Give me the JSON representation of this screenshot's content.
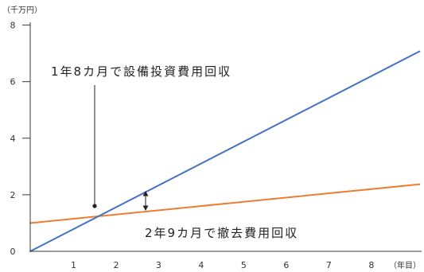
{
  "chart_data": {
    "type": "line",
    "ylabel": "（千万円）",
    "xlabel": "（年目）",
    "x_ticks": [
      "1",
      "2",
      "3",
      "4",
      "5",
      "6",
      "7",
      "8"
    ],
    "y_ticks": [
      "0",
      "2",
      "4",
      "6",
      "8"
    ],
    "xlim": [
      0,
      9.2
    ],
    "ylim": [
      0,
      8.1
    ],
    "grid": false,
    "series": [
      {
        "color": "#4472C4",
        "x": [
          0,
          9.15
        ],
        "y": [
          0,
          7.07
        ]
      },
      {
        "color": "#ED7D31",
        "x": [
          0,
          9.15
        ],
        "y": [
          1.0,
          2.37
        ]
      }
    ],
    "annotations": [
      {
        "text": "1年8カ月で設備投資費用回収"
      },
      {
        "text": "2年9カ月で撤去費用回収"
      }
    ]
  }
}
